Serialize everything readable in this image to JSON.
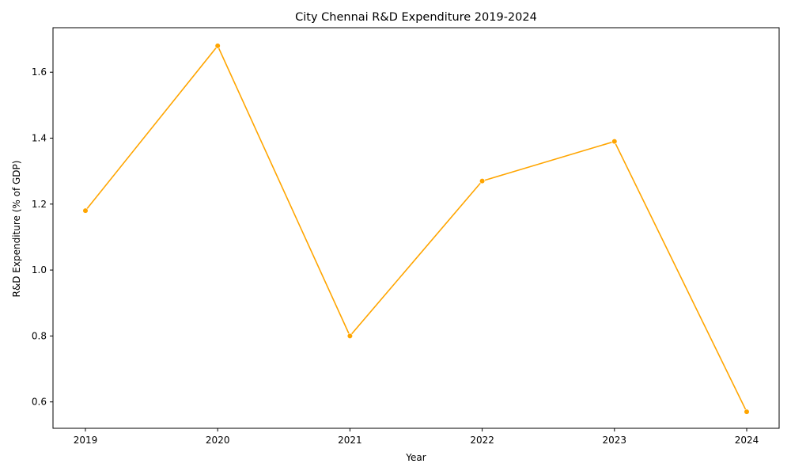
{
  "chart_data": {
    "type": "line",
    "title": "City Chennai R&D Expenditure 2019-2024",
    "xlabel": "Year",
    "ylabel": "R&D Expenditure (% of GDP)",
    "x": [
      "2019",
      "2020",
      "2021",
      "2022",
      "2023",
      "2024"
    ],
    "series": [
      {
        "values": [
          1.18,
          1.68,
          0.8,
          1.27,
          1.39,
          0.57
        ],
        "color": "#FFA500"
      }
    ],
    "ylim": [
      0.52,
      1.735
    ],
    "yticks": [
      "0.6",
      "0.8",
      "1.0",
      "1.2",
      "1.4",
      "1.6"
    ],
    "grid": false,
    "marker": "circle"
  }
}
